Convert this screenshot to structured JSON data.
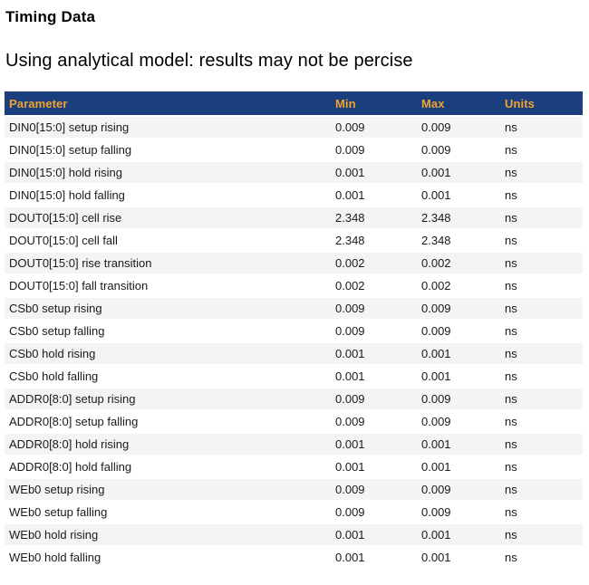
{
  "page": {
    "title": "Timing Data",
    "subtitle": "Using analytical model: results may not be percise"
  },
  "table": {
    "columns": [
      "Parameter",
      "Min",
      "Max",
      "Units"
    ],
    "rows": [
      {
        "parameter": "DIN0[15:0] setup rising",
        "min": "0.009",
        "max": "0.009",
        "units": "ns"
      },
      {
        "parameter": "DIN0[15:0] setup falling",
        "min": "0.009",
        "max": "0.009",
        "units": "ns"
      },
      {
        "parameter": "DIN0[15:0] hold rising",
        "min": "0.001",
        "max": "0.001",
        "units": "ns"
      },
      {
        "parameter": "DIN0[15:0] hold falling",
        "min": "0.001",
        "max": "0.001",
        "units": "ns"
      },
      {
        "parameter": "DOUT0[15:0] cell rise",
        "min": "2.348",
        "max": "2.348",
        "units": "ns"
      },
      {
        "parameter": "DOUT0[15:0] cell fall",
        "min": "2.348",
        "max": "2.348",
        "units": "ns"
      },
      {
        "parameter": "DOUT0[15:0] rise transition",
        "min": "0.002",
        "max": "0.002",
        "units": "ns"
      },
      {
        "parameter": "DOUT0[15:0] fall transition",
        "min": "0.002",
        "max": "0.002",
        "units": "ns"
      },
      {
        "parameter": "CSb0 setup rising",
        "min": "0.009",
        "max": "0.009",
        "units": "ns"
      },
      {
        "parameter": "CSb0 setup falling",
        "min": "0.009",
        "max": "0.009",
        "units": "ns"
      },
      {
        "parameter": "CSb0 hold rising",
        "min": "0.001",
        "max": "0.001",
        "units": "ns"
      },
      {
        "parameter": "CSb0 hold falling",
        "min": "0.001",
        "max": "0.001",
        "units": "ns"
      },
      {
        "parameter": "ADDR0[8:0] setup rising",
        "min": "0.009",
        "max": "0.009",
        "units": "ns"
      },
      {
        "parameter": "ADDR0[8:0] setup falling",
        "min": "0.009",
        "max": "0.009",
        "units": "ns"
      },
      {
        "parameter": "ADDR0[8:0] hold rising",
        "min": "0.001",
        "max": "0.001",
        "units": "ns"
      },
      {
        "parameter": "ADDR0[8:0] hold falling",
        "min": "0.001",
        "max": "0.001",
        "units": "ns"
      },
      {
        "parameter": "WEb0 setup rising",
        "min": "0.009",
        "max": "0.009",
        "units": "ns"
      },
      {
        "parameter": "WEb0 setup falling",
        "min": "0.009",
        "max": "0.009",
        "units": "ns"
      },
      {
        "parameter": "WEb0 hold rising",
        "min": "0.001",
        "max": "0.001",
        "units": "ns"
      },
      {
        "parameter": "WEb0 hold falling",
        "min": "0.001",
        "max": "0.001",
        "units": "ns"
      }
    ]
  },
  "colors": {
    "header_bg": "#1b3e7c",
    "header_text": "#f0a330",
    "row_alt_bg": "#f4f4f5",
    "body_text": "#1a1a1a"
  }
}
